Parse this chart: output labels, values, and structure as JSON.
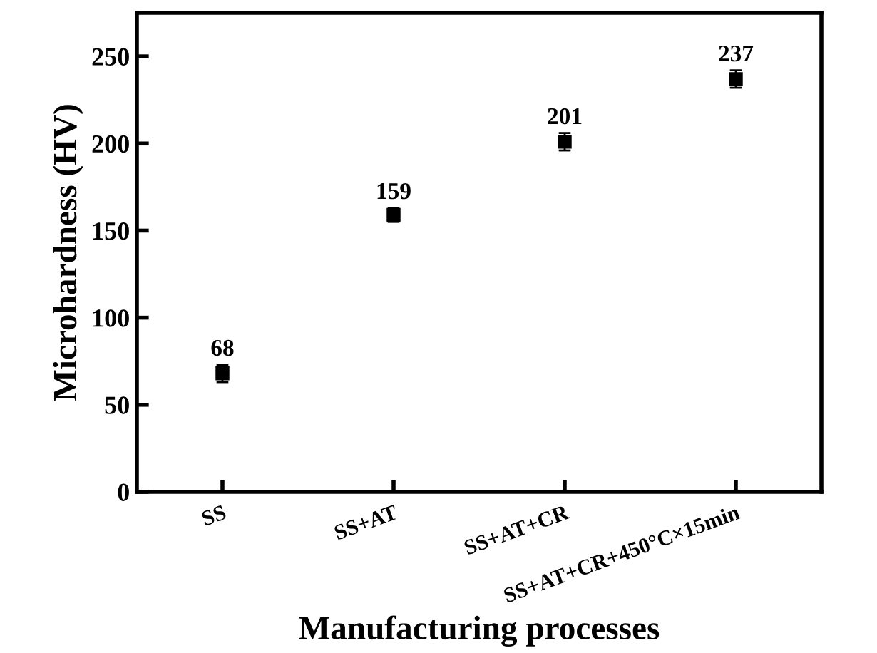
{
  "chart_data": {
    "type": "scatter",
    "xlabel": "Manufacturing processes",
    "ylabel": "Microhardness (HV)",
    "categories": [
      "SS",
      "SS+AT",
      "SS+AT+CR",
      "SS+AT+CR+450°C×15min"
    ],
    "series": [
      {
        "color": "#000000",
        "values": [
          68,
          159,
          201,
          237
        ],
        "errors": [
          5,
          4,
          5,
          5
        ]
      }
    ],
    "marker": "square",
    "data_labels": true,
    "ylim": [
      0,
      275
    ],
    "yticks": [
      0,
      50,
      100,
      150,
      200,
      250
    ],
    "grid": false,
    "legend": false
  }
}
